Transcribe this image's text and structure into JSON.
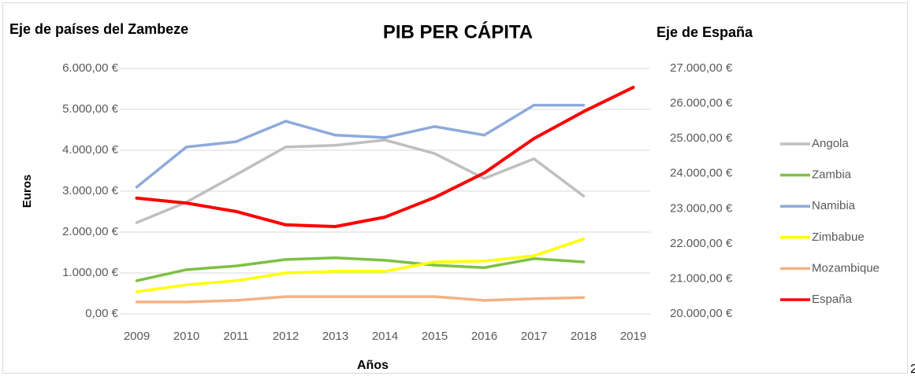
{
  "chart_data": {
    "type": "line",
    "title": "PIB PER CÁPITA",
    "y_axis_title": "Eje de países del Zambeze",
    "y2_axis_title": "Eje de España",
    "y_label": "Euros",
    "x_label": "Años",
    "categories": [
      "2009",
      "2010",
      "2011",
      "2012",
      "2013",
      "2014",
      "2015",
      "2016",
      "2017",
      "2018",
      "2019"
    ],
    "series": [
      {
        "name": "Angola",
        "color": "#bfbfbf",
        "values": [
          2230,
          2730,
          3400,
          4080,
          4120,
          4250,
          3920,
          3310,
          3790,
          2880,
          null
        ]
      },
      {
        "name": "Zambia",
        "color": "#7cc142",
        "values": [
          810,
          1080,
          1170,
          1330,
          1370,
          1310,
          1190,
          1130,
          1350,
          1270,
          null
        ]
      },
      {
        "name": "Namibia",
        "color": "#8eaadb",
        "values": [
          3100,
          4080,
          4210,
          4710,
          4370,
          4310,
          4580,
          4370,
          5100,
          5100,
          null
        ]
      },
      {
        "name": "Zimbabue",
        "color": "#ffff00",
        "values": [
          540,
          710,
          810,
          1000,
          1040,
          1040,
          1270,
          1290,
          1420,
          1830,
          null
        ]
      },
      {
        "name": "Mozambique",
        "color": "#f4b183",
        "values": [
          290,
          290,
          330,
          420,
          420,
          420,
          420,
          330,
          370,
          400,
          null
        ]
      },
      {
        "name": "España",
        "color": "#ff0000",
        "axis": "y2",
        "values": [
          23300,
          23160,
          22920,
          22540,
          22490,
          22760,
          23320,
          24020,
          25000,
          25770,
          26460
        ]
      }
    ],
    "ylim": [
      0,
      6000
    ],
    "yticks": [
      {
        "value": 0,
        "label": "0,00 €"
      },
      {
        "value": 1000,
        "label": "1.000,00 €"
      },
      {
        "value": 2000,
        "label": "2.000,00 €"
      },
      {
        "value": 3000,
        "label": "3.000,00 €"
      },
      {
        "value": 4000,
        "label": "4.000,00 €"
      },
      {
        "value": 5000,
        "label": "5.000,00 €"
      },
      {
        "value": 6000,
        "label": "6.000,00 €"
      }
    ],
    "y2lim": [
      20000,
      27000
    ],
    "y2ticks": [
      {
        "value": 20000,
        "label": "20.000,00 €"
      },
      {
        "value": 21000,
        "label": "21.000,00 €"
      },
      {
        "value": 22000,
        "label": "22.000,00 €"
      },
      {
        "value": 23000,
        "label": "23.000,00 €"
      },
      {
        "value": 24000,
        "label": "24.000,00 €"
      },
      {
        "value": 25000,
        "label": "25.000,00 €"
      },
      {
        "value": 26000,
        "label": "26.000,00 €"
      },
      {
        "value": 27000,
        "label": "27.000,00 €"
      }
    ],
    "grid": true,
    "legend": "right"
  },
  "footnote": "2"
}
